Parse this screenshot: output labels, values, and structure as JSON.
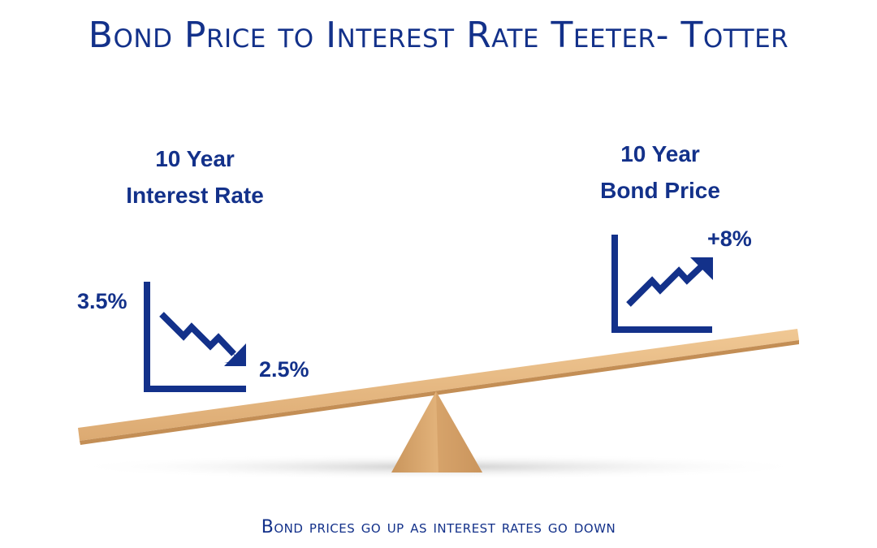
{
  "title": "Bond Price to Interest Rate Teeter- Totter",
  "left_side": {
    "heading_line1": "10 Year",
    "heading_line2": "Interest Rate",
    "start_value": "3.5%",
    "end_value": "2.5%",
    "trend_icon": "down-trend-chart-icon"
  },
  "right_side": {
    "heading_line1": "10 Year",
    "heading_line2": "Bond Price",
    "change_value": "+8%",
    "trend_icon": "up-trend-chart-icon"
  },
  "caption": "Bond prices go up as interest rates go down",
  "colors": {
    "text": "#13318a",
    "plank": "#e2b37c",
    "fulcrum": "#d8a770"
  }
}
